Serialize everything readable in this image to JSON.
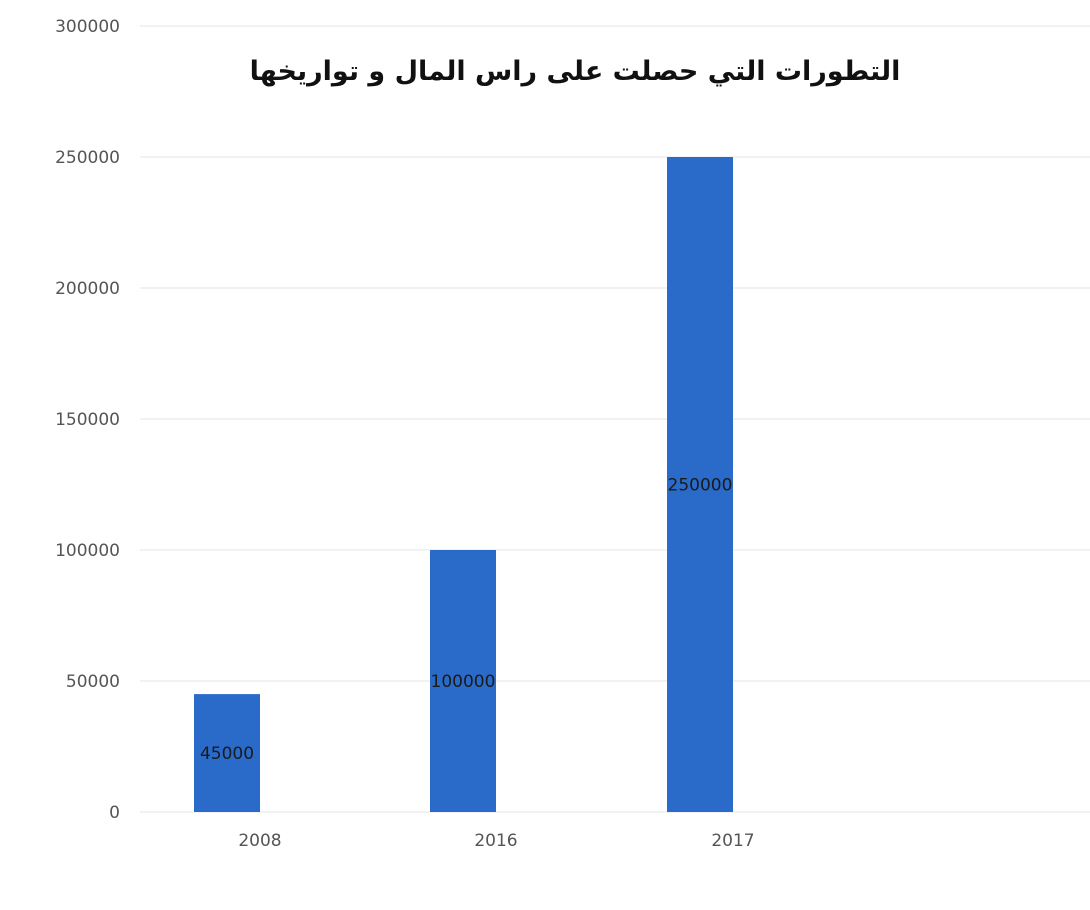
{
  "chart_data": {
    "type": "bar",
    "title": "التطورات التي حصلت على راس المال و تواريخها",
    "categories": [
      "2008",
      "2016",
      "2017"
    ],
    "series": [
      {
        "values": [
          45000,
          100000,
          250000
        ],
        "data_labels": [
          "45000",
          "100000",
          "250000"
        ]
      }
    ],
    "xlabel": "",
    "ylabel": "",
    "ylim": [
      0,
      300000
    ],
    "y_ticks": [
      0,
      50000,
      100000,
      150000,
      200000,
      250000,
      300000
    ],
    "y_tick_labels": [
      "0",
      "50000",
      "100000",
      "150000",
      "200000",
      "250000",
      "300000"
    ],
    "grid": true,
    "legend": "none",
    "bar_color": "#2a6bc9"
  }
}
